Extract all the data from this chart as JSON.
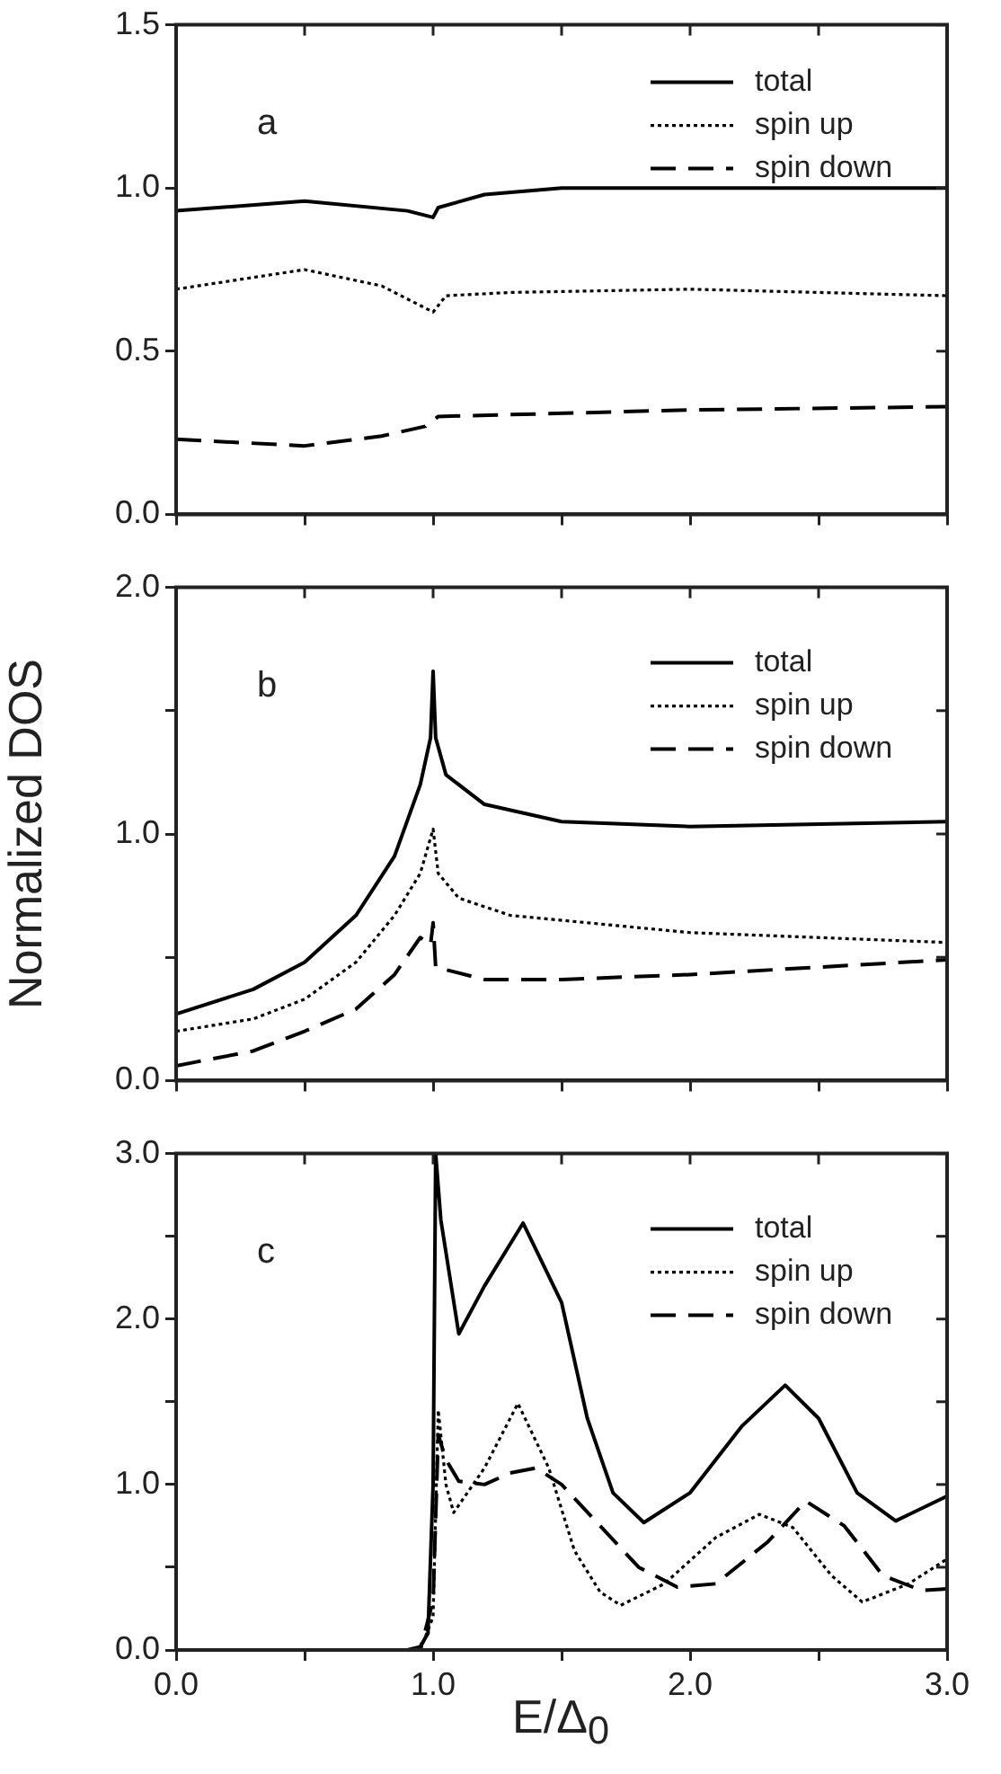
{
  "chart_data": [
    {
      "type": "line",
      "annotations": [
        "a"
      ],
      "legend": "top right",
      "grid": false,
      "tick_labels": "y",
      "xlim": [
        0,
        3
      ],
      "xticks": [
        {
          "value": 0,
          "label": null
        },
        {
          "value": 0.5,
          "label": null
        },
        {
          "value": 1,
          "label": null
        },
        {
          "value": 1.5,
          "label": null
        },
        {
          "value": 2,
          "label": null
        },
        {
          "value": 2.5,
          "label": null
        },
        {
          "value": 3,
          "label": null
        }
      ],
      "ylim": [
        0,
        1.5
      ],
      "yticks": [
        {
          "value": 0,
          "label": "0.0"
        },
        {
          "value": 0.5,
          "label": "0.5"
        },
        {
          "value": 1,
          "label": "1.0"
        },
        {
          "value": 1.5,
          "label": "1.5"
        }
      ],
      "series": [
        {
          "name": "total",
          "color": "#000000",
          "line_style": "solid",
          "x": [
            0,
            0.5,
            0.9,
            1.0,
            1.02,
            1.2,
            1.5,
            3
          ],
          "values": [
            0.93,
            0.96,
            0.93,
            0.91,
            0.94,
            0.98,
            1.0,
            1.0
          ]
        },
        {
          "name": "spin up",
          "color": "#000000",
          "line_style": "dotted",
          "x": [
            0,
            0.5,
            0.8,
            1.0,
            1.05,
            1.3,
            2,
            3
          ],
          "values": [
            0.69,
            0.75,
            0.7,
            0.62,
            0.67,
            0.68,
            0.69,
            0.67
          ]
        },
        {
          "name": "spin down",
          "color": "#000000",
          "line_style": "dashed",
          "x": [
            0,
            0.5,
            0.8,
            0.97,
            1.02,
            2,
            3
          ],
          "values": [
            0.23,
            0.21,
            0.24,
            0.27,
            0.3,
            0.32,
            0.33
          ]
        }
      ]
    },
    {
      "type": "line",
      "annotations": [
        "b"
      ],
      "legend": "top right",
      "grid": false,
      "tick_labels": "y",
      "ylabel": "Normalized DOS",
      "xlim": [
        0,
        3
      ],
      "xticks": [
        {
          "value": 0,
          "label": null
        },
        {
          "value": 0.5,
          "label": null
        },
        {
          "value": 1,
          "label": null
        },
        {
          "value": 1.5,
          "label": null
        },
        {
          "value": 2,
          "label": null
        },
        {
          "value": 2.5,
          "label": null
        },
        {
          "value": 3,
          "label": null
        }
      ],
      "ylim": [
        0,
        2
      ],
      "yticks": [
        {
          "value": 0,
          "label": "0.0"
        },
        {
          "value": 0.5,
          "label": null
        },
        {
          "value": 1,
          "label": "1.0"
        },
        {
          "value": 1.5,
          "label": null
        },
        {
          "value": 2,
          "label": "2.0"
        }
      ],
      "series": [
        {
          "name": "total",
          "color": "#000000",
          "line_style": "solid",
          "x": [
            0,
            0.3,
            0.5,
            0.7,
            0.85,
            0.95,
            0.99,
            1.0,
            1.01,
            1.05,
            1.2,
            1.5,
            2,
            3
          ],
          "values": [
            0.27,
            0.37,
            0.48,
            0.67,
            0.91,
            1.2,
            1.39,
            1.66,
            1.39,
            1.24,
            1.12,
            1.05,
            1.03,
            1.05
          ]
        },
        {
          "name": "spin up",
          "color": "#000000",
          "line_style": "dotted",
          "x": [
            0,
            0.3,
            0.5,
            0.7,
            0.85,
            0.95,
            1.0,
            1.02,
            1.1,
            1.3,
            2,
            3
          ],
          "values": [
            0.2,
            0.25,
            0.33,
            0.48,
            0.67,
            0.84,
            1.02,
            0.84,
            0.74,
            0.67,
            0.6,
            0.56
          ]
        },
        {
          "name": "spin down",
          "color": "#000000",
          "line_style": "dashed",
          "x": [
            0,
            0.3,
            0.5,
            0.7,
            0.85,
            0.95,
            0.99,
            1.0,
            1.01,
            1.2,
            1.5,
            2,
            3
          ],
          "values": [
            0.06,
            0.12,
            0.2,
            0.29,
            0.43,
            0.58,
            0.55,
            0.64,
            0.46,
            0.41,
            0.41,
            0.43,
            0.49
          ]
        }
      ]
    },
    {
      "type": "line",
      "annotations": [
        "c"
      ],
      "legend": "top right",
      "grid": false,
      "xlabel": "E/Δ$_{0}$",
      "xlim": [
        0,
        3
      ],
      "xticks": [
        {
          "value": 0,
          "label": "0.0"
        },
        {
          "value": 0.5,
          "label": null
        },
        {
          "value": 1,
          "label": "1.0"
        },
        {
          "value": 1.5,
          "label": null
        },
        {
          "value": 2,
          "label": "2.0"
        },
        {
          "value": 2.5,
          "label": null
        },
        {
          "value": 3,
          "label": "3.0"
        }
      ],
      "ylim": [
        0,
        3
      ],
      "yticks": [
        {
          "value": 0,
          "label": "0.0"
        },
        {
          "value": 0.5,
          "label": null
        },
        {
          "value": 1,
          "label": "1.0"
        },
        {
          "value": 1.5,
          "label": null
        },
        {
          "value": 2,
          "label": "2.0"
        },
        {
          "value": 2.5,
          "label": null
        },
        {
          "value": 3,
          "label": "3.0"
        }
      ],
      "series": [
        {
          "name": "total",
          "color": "#000000",
          "line_style": "solid",
          "x": [
            0,
            0.9,
            0.95,
            0.98,
            1.0,
            1.01,
            1.03,
            1.1,
            1.2,
            1.35,
            1.5,
            1.6,
            1.7,
            1.82,
            2.0,
            2.2,
            2.37,
            2.5,
            2.65,
            2.8,
            3.0
          ],
          "values": [
            0,
            0,
            0.02,
            0.1,
            1.0,
            3.0,
            2.6,
            1.91,
            2.2,
            2.58,
            2.1,
            1.4,
            0.95,
            0.77,
            0.95,
            1.35,
            1.6,
            1.4,
            0.95,
            0.78,
            0.93
          ]
        },
        {
          "name": "spin up",
          "color": "#000000",
          "line_style": "dotted",
          "x": [
            0,
            0.95,
            1.0,
            1.02,
            1.05,
            1.08,
            1.2,
            1.33,
            1.45,
            1.55,
            1.65,
            1.73,
            1.9,
            2.1,
            2.27,
            2.4,
            2.55,
            2.67,
            2.85,
            3.0
          ],
          "values": [
            0,
            0,
            0.2,
            1.45,
            1.0,
            0.83,
            1.1,
            1.49,
            1.1,
            0.6,
            0.35,
            0.27,
            0.4,
            0.68,
            0.82,
            0.74,
            0.45,
            0.29,
            0.4,
            0.55
          ]
        },
        {
          "name": "spin down",
          "color": "#000000",
          "line_style": "dashed",
          "x": [
            0,
            0.95,
            1.0,
            1.02,
            1.05,
            1.1,
            1.2,
            1.3,
            1.4,
            1.5,
            1.65,
            1.8,
            1.95,
            2.1,
            2.3,
            2.45,
            2.6,
            2.75,
            2.9,
            3.0
          ],
          "values": [
            0,
            0,
            0.3,
            1.3,
            1.15,
            1.02,
            1.0,
            1.07,
            1.1,
            1.0,
            0.75,
            0.5,
            0.38,
            0.4,
            0.65,
            0.9,
            0.75,
            0.45,
            0.36,
            0.37
          ]
        }
      ]
    }
  ]
}
